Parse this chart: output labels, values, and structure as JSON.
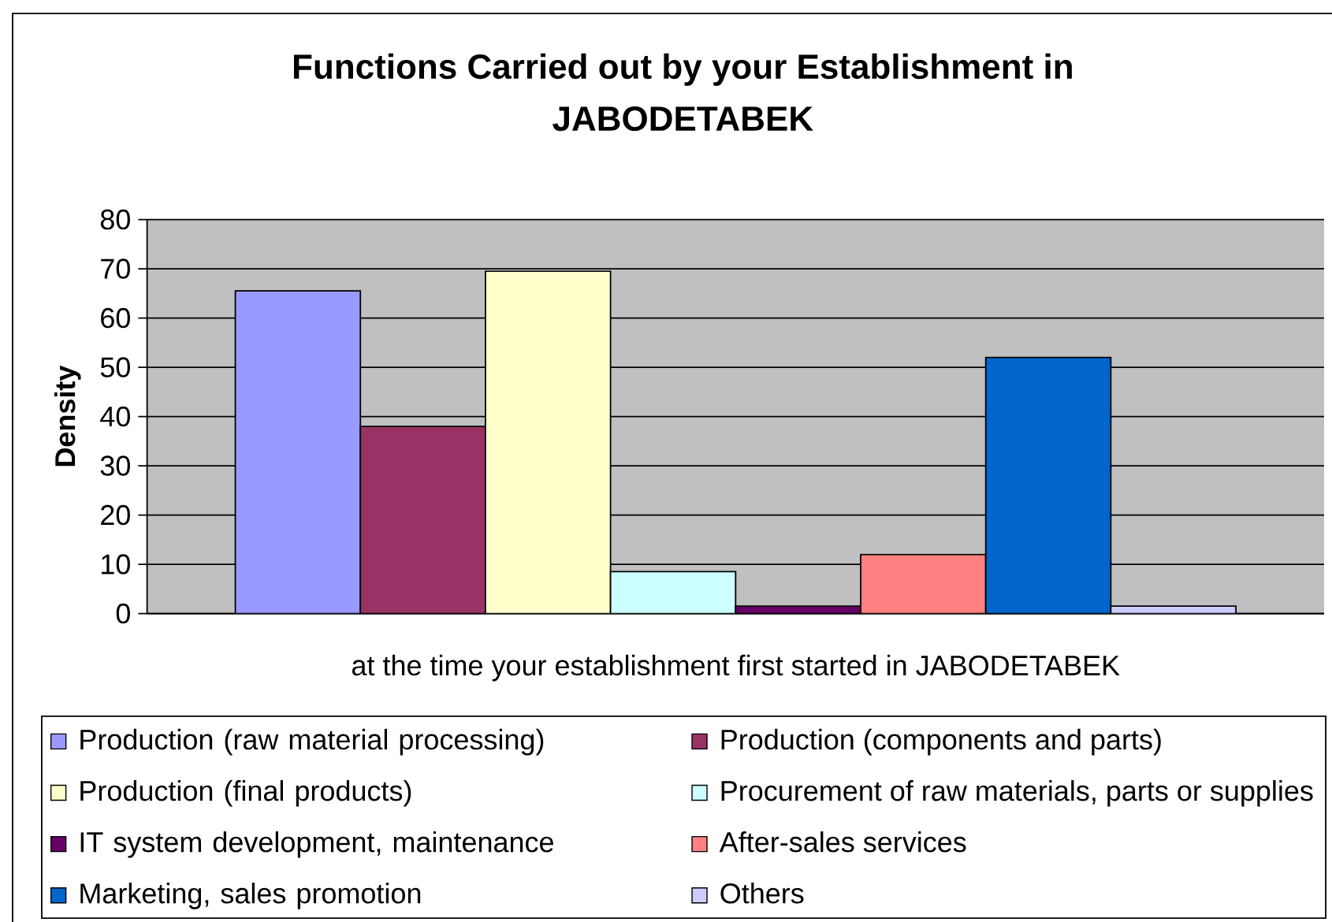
{
  "chart_data": {
    "type": "bar",
    "title": "Functions Carried out by your Establishment in JABODETABEK",
    "ylabel": "Density",
    "categories": [
      "at the time your establishment first started in JABODETABEK"
    ],
    "series": [
      {
        "name": "Production (raw material processing)",
        "color": "#9999ff",
        "values": [
          65.5
        ]
      },
      {
        "name": "Production (components and parts)",
        "color": "#993366",
        "values": [
          38
        ]
      },
      {
        "name": "Production (final products)",
        "color": "#ffffcc",
        "values": [
          69.5
        ]
      },
      {
        "name": "Procurement of raw materials, parts or supplies",
        "color": "#ccffff",
        "values": [
          8.5
        ]
      },
      {
        "name": "IT system development, maintenance",
        "color": "#660066",
        "values": [
          1.5
        ]
      },
      {
        "name": "After-sales services",
        "color": "#ff8080",
        "values": [
          12
        ]
      },
      {
        "name": "Marketing, sales promotion",
        "color": "#0066cc",
        "values": [
          52
        ]
      },
      {
        "name": "Others",
        "color": "#ccccff",
        "values": [
          1.5
        ]
      }
    ],
    "ylim": [
      0,
      80
    ],
    "yticks": [
      0,
      10,
      20,
      30,
      40,
      50,
      60,
      70,
      80
    ],
    "grid": "y",
    "legend": "bottom"
  }
}
